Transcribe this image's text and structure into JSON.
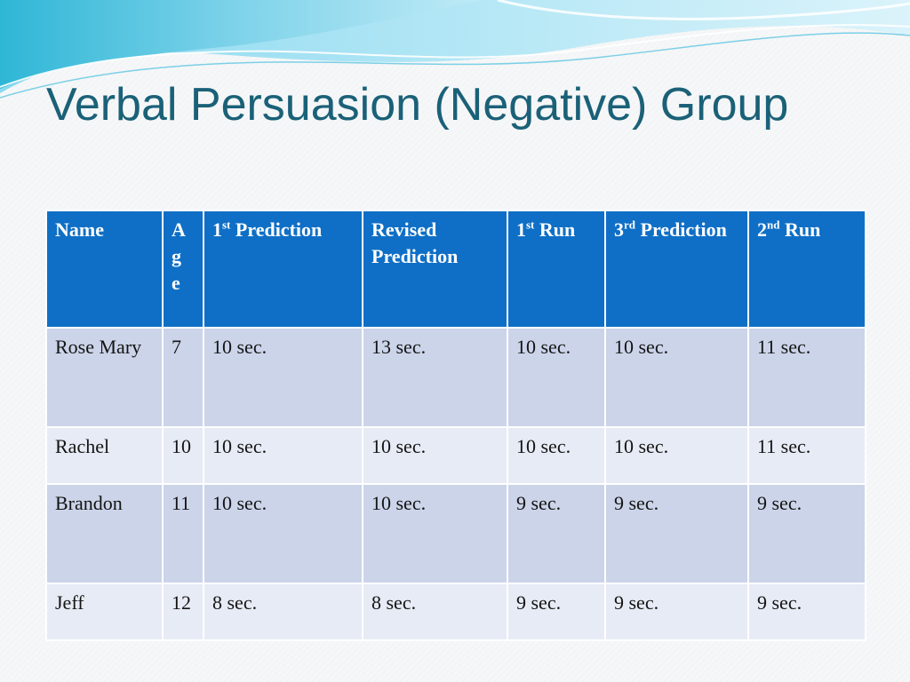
{
  "slide": {
    "title": "Verbal Persuasion (Negative) Group",
    "accent_color": "#1a6178",
    "header_color": "#0f6fc6",
    "row_color_odd": "#cbd4e9",
    "row_color_even": "#e7ebf5"
  },
  "table": {
    "headers": [
      {
        "main": "Name",
        "sup": "",
        "rest": ""
      },
      {
        "main": "A g e",
        "sup": "",
        "rest": ""
      },
      {
        "main": "1",
        "sup": "st",
        "rest": " Prediction"
      },
      {
        "main": "Revised Prediction",
        "sup": "",
        "rest": ""
      },
      {
        "main": "1",
        "sup": "st",
        "rest": " Run"
      },
      {
        "main": "3",
        "sup": "rd",
        "rest": " Prediction"
      },
      {
        "main": "2",
        "sup": "nd",
        "rest": " Run"
      }
    ],
    "rows": [
      [
        "Rose Mary",
        "7",
        "10 sec.",
        "13 sec.",
        "10 sec.",
        "10 sec.",
        "11 sec."
      ],
      [
        "Rachel",
        "10",
        "10 sec.",
        "10 sec.",
        "10 sec.",
        "10 sec.",
        "11 sec."
      ],
      [
        "Brandon",
        "11",
        "10 sec.",
        "10 sec.",
        "9 sec.",
        "9 sec.",
        "9 sec."
      ],
      [
        "Jeff",
        "12",
        "8 sec.",
        "8 sec.",
        "9 sec.",
        "9 sec.",
        "9 sec."
      ]
    ]
  }
}
